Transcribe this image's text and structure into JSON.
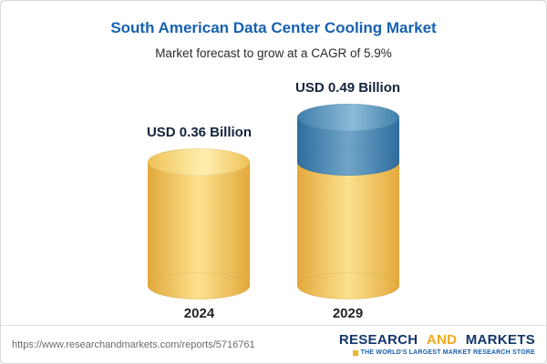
{
  "header": {
    "title": "South American Data Center Cooling Market",
    "subtitle": "Market forecast to grow at a CAGR of 5.9%"
  },
  "chart_data": {
    "type": "bar",
    "title": "South American Data Center Cooling Market",
    "subtitle": "Market forecast to grow at a CAGR of 5.9%",
    "unit": "USD Billion",
    "cagr_percent": 5.9,
    "categories": [
      "2024",
      "2029"
    ],
    "values": [
      0.36,
      0.49
    ],
    "ylim": [
      0,
      0.49
    ],
    "grid": false,
    "legend": false,
    "bars": [
      {
        "category": "2024",
        "label": "USD 0.36 Billion",
        "segments": [
          {
            "color": "gold",
            "value": 0.36
          }
        ]
      },
      {
        "category": "2029",
        "label": "USD 0.49 Billion",
        "segments": [
          {
            "color": "gold",
            "value": 0.36
          },
          {
            "color": "blue",
            "value": 0.13
          }
        ]
      }
    ],
    "palette": {
      "gold": {
        "edge": "#E3A93C",
        "mid": "#FCE18E",
        "cap_edge": "#EFC257",
        "cap_mid": "#FFEFB0"
      },
      "blue": {
        "edge": "#2F6D9D",
        "mid": "#6FA5C9",
        "cap_edge": "#3F7FAB",
        "cap_mid": "#8CBBD8"
      }
    }
  },
  "footer": {
    "url": "https://www.researchandmarkets.com/reports/5716761",
    "logo": {
      "research": "RESEARCH",
      "and_word": "AND",
      "markets": "MARKETS",
      "tagline": "THE WORLD'S LARGEST MARKET RESEARCH STORE"
    }
  },
  "colors": {
    "title_blue": "#1661B2",
    "bar_gold": "#F2C661",
    "bar_blue": "#4A80A8",
    "logo_navy": "#14376B",
    "logo_gold": "#F5A81C"
  }
}
